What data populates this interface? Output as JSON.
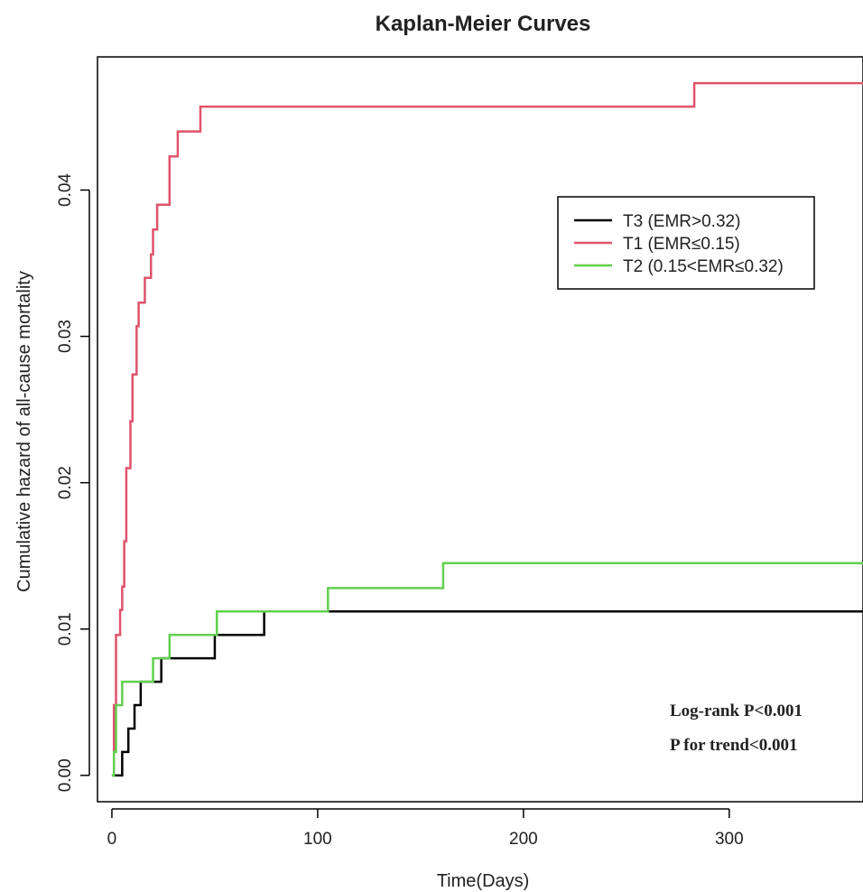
{
  "chart_data": {
    "type": "line",
    "title": "Kaplan-Meier Curves",
    "xlabel": "Time(Days)",
    "ylabel": "Cumulative hazard of all-cause mortality",
    "xlim": [
      -7,
      365
    ],
    "ylim": [
      -0.0018,
      0.0491
    ],
    "x_ticks": [
      0,
      100,
      200,
      300
    ],
    "y_ticks": [
      0.0,
      0.01,
      0.02,
      0.03,
      0.04
    ],
    "x_tick_labels": [
      "0",
      "100",
      "200",
      "300"
    ],
    "y_tick_labels": [
      "0.00",
      "0.01",
      "0.02",
      "0.03",
      "0.04"
    ],
    "legend_position": "upper-right",
    "grid": false,
    "series": [
      {
        "name": "T3 (EMR>0.32)",
        "color": "#000000",
        "step_points": [
          [
            0,
            0
          ],
          [
            5,
            0.0016
          ],
          [
            8,
            0.0032
          ],
          [
            11,
            0.0048
          ],
          [
            14,
            0.0064
          ],
          [
            24,
            0.008
          ],
          [
            50,
            0.0096
          ],
          [
            74,
            0.0112
          ],
          [
            365,
            0.0112
          ]
        ]
      },
      {
        "name": "T1 (EMR≤0.15)",
        "color": "#df536b",
        "step_points": [
          [
            0,
            0
          ],
          [
            1,
            0.0048
          ],
          [
            2,
            0.0096
          ],
          [
            4,
            0.0113
          ],
          [
            5,
            0.0129
          ],
          [
            6,
            0.016
          ],
          [
            7,
            0.021
          ],
          [
            9,
            0.0242
          ],
          [
            10,
            0.0274
          ],
          [
            12,
            0.0307
          ],
          [
            13,
            0.0323
          ],
          [
            16,
            0.034
          ],
          [
            19,
            0.0356
          ],
          [
            20,
            0.0373
          ],
          [
            22,
            0.039
          ],
          [
            28,
            0.0423
          ],
          [
            32,
            0.044
          ],
          [
            43,
            0.0457
          ],
          [
            283,
            0.0473
          ],
          [
            365,
            0.0473
          ]
        ]
      },
      {
        "name": "T2 (0.15<EMR≤0.32)",
        "color": "#61d04f",
        "step_points": [
          [
            0,
            0
          ],
          [
            1,
            0.0016
          ],
          [
            2,
            0.0048
          ],
          [
            5,
            0.0064
          ],
          [
            20,
            0.008
          ],
          [
            28,
            0.0096
          ],
          [
            51,
            0.0112
          ],
          [
            105,
            0.0128
          ],
          [
            161,
            0.0145
          ],
          [
            365,
            0.0145
          ]
        ]
      }
    ],
    "annotations": [
      "Log-rank P<0.001",
      "P for trend<0.001"
    ]
  }
}
